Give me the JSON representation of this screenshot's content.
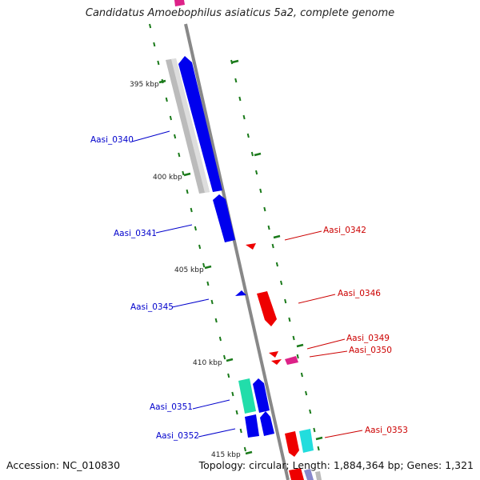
{
  "title": "Candidatus Amoebophilus asiaticus 5a2, complete genome",
  "footer": {
    "accession": "Accession: NC_010830",
    "topology": "Topology: circular; Length: 1,884,364 bp; Genes: 1,321"
  },
  "scale_labels": [
    "395 kbp",
    "400 kbp",
    "405 kbp",
    "410 kbp",
    "415 kbp"
  ],
  "colors": {
    "forward_cds": "#0000ee",
    "reverse_cds": "#ee0000",
    "rna_gene": "#22ddaa",
    "other_gene": "#22dddd",
    "pseudo_gene": "#dd2288",
    "backbone": "#888888",
    "tick": "#1a7a1a",
    "label_forward": "#0000cc",
    "label_reverse": "#cc0000"
  },
  "gene_labels": [
    {
      "text": "Aasi_0340",
      "strand": "forward"
    },
    {
      "text": "Aasi_0341",
      "strand": "forward"
    },
    {
      "text": "Aasi_0345",
      "strand": "forward"
    },
    {
      "text": "Aasi_0351",
      "strand": "forward"
    },
    {
      "text": "Aasi_0352",
      "strand": "forward"
    },
    {
      "text": "Aasi_0342",
      "strand": "reverse"
    },
    {
      "text": "Aasi_0346",
      "strand": "reverse"
    },
    {
      "text": "Aasi_0349",
      "strand": "reverse"
    },
    {
      "text": "Aasi_0350",
      "strand": "reverse"
    },
    {
      "text": "Aasi_0353",
      "strand": "reverse"
    }
  ]
}
